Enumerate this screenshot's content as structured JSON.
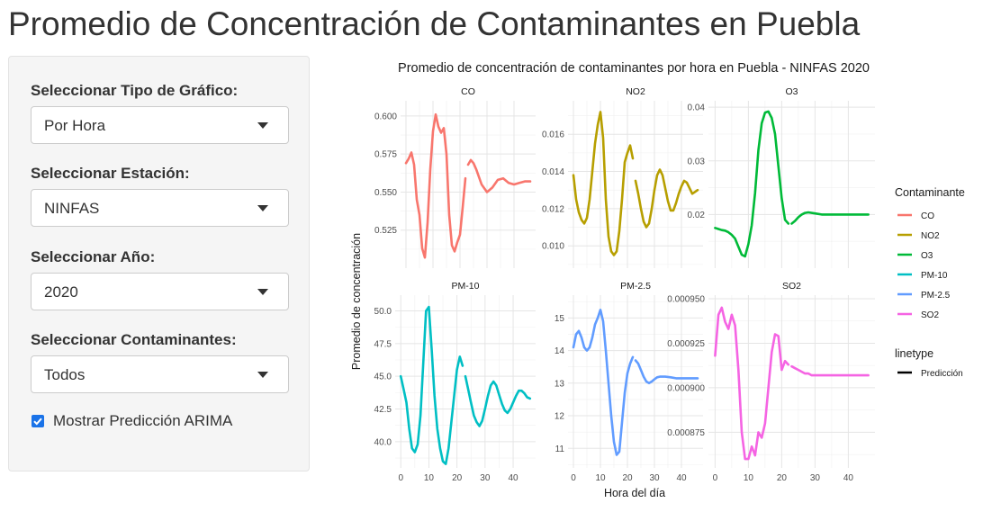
{
  "page": {
    "title": "Promedio de Concentración de Contaminantes en Puebla"
  },
  "sidebar": {
    "chart_type": {
      "label": "Seleccionar Tipo de Gráfico:",
      "value": "Por Hora"
    },
    "station": {
      "label": "Seleccionar Estación:",
      "value": "NINFAS"
    },
    "year": {
      "label": "Seleccionar Año:",
      "value": "2020"
    },
    "pollutants": {
      "label": "Seleccionar Contaminantes:",
      "value": "Todos"
    },
    "arima": {
      "label": "Mostrar Predicción ARIMA",
      "checked": true
    }
  },
  "chart_data": {
    "type": "line",
    "title": "Promedio de concentración de contaminantes por hora en Puebla - NINFAS 2020",
    "xlabel": "Hora del día",
    "ylabel": "Promedio de concentración",
    "grid": true,
    "legend_position": "right",
    "legend": {
      "color_title": "Contaminante",
      "linetype_title": "linetype",
      "linetype_entries": [
        "Predicción"
      ]
    },
    "panels": [
      {
        "name": "CO",
        "color": "#F8766D",
        "xlim": [
          -2,
          48
        ],
        "x_ticks": [
          0,
          10,
          20,
          30,
          40
        ],
        "ylim": [
          0.5,
          0.61
        ],
        "y_ticks": [
          0.525,
          0.55,
          0.575,
          0.6
        ],
        "y_tick_labels": [
          "0.525",
          "0.550",
          "0.575",
          "0.600"
        ],
        "observed": {
          "x": [
            0,
            1,
            2,
            3,
            4,
            5,
            6,
            7,
            8,
            9,
            10,
            11,
            12,
            13,
            14,
            15,
            16,
            17,
            18,
            19,
            20,
            21,
            22
          ],
          "y": [
            0.569,
            0.572,
            0.576,
            0.568,
            0.545,
            0.535,
            0.513,
            0.507,
            0.53,
            0.565,
            0.59,
            0.601,
            0.593,
            0.589,
            0.592,
            0.575,
            0.535,
            0.515,
            0.511,
            0.517,
            0.522,
            0.54,
            0.559
          ]
        },
        "prediction": {
          "x": [
            23,
            24,
            25,
            26,
            28,
            30,
            32,
            34,
            36,
            38,
            40,
            42,
            44,
            46
          ],
          "y": [
            0.568,
            0.571,
            0.569,
            0.565,
            0.555,
            0.55,
            0.553,
            0.558,
            0.559,
            0.556,
            0.555,
            0.556,
            0.557,
            0.557
          ]
        }
      },
      {
        "name": "NO2",
        "color": "#B79F00",
        "xlim": [
          -2,
          48
        ],
        "x_ticks": [
          0,
          10,
          20,
          30,
          40
        ],
        "ylim": [
          0.0088,
          0.0178
        ],
        "y_ticks": [
          0.01,
          0.012,
          0.014,
          0.016
        ],
        "y_tick_labels": [
          "0.010",
          "0.012",
          "0.014",
          "0.016"
        ],
        "observed": {
          "x": [
            0,
            1,
            2,
            3,
            4,
            5,
            6,
            7,
            8,
            9,
            10,
            11,
            12,
            13,
            14,
            15,
            16,
            17,
            18,
            19,
            20,
            21,
            22
          ],
          "y": [
            0.0138,
            0.0125,
            0.0118,
            0.0114,
            0.0112,
            0.0115,
            0.0125,
            0.014,
            0.0155,
            0.0165,
            0.0172,
            0.0158,
            0.0125,
            0.0105,
            0.0097,
            0.0095,
            0.0097,
            0.0108,
            0.0125,
            0.0145,
            0.015,
            0.0154,
            0.0147
          ]
        },
        "prediction": {
          "x": [
            23,
            24,
            25,
            26,
            27,
            28,
            29,
            30,
            31,
            32,
            33,
            34,
            35,
            36,
            37,
            38,
            39,
            40,
            41,
            42,
            43,
            44,
            45,
            46
          ],
          "y": [
            0.0135,
            0.0128,
            0.012,
            0.0113,
            0.011,
            0.0112,
            0.012,
            0.013,
            0.0138,
            0.0141,
            0.0138,
            0.0131,
            0.0124,
            0.0119,
            0.0119,
            0.0123,
            0.0128,
            0.0132,
            0.0135,
            0.0134,
            0.0131,
            0.0128,
            0.0129,
            0.013
          ]
        }
      },
      {
        "name": "O3",
        "color": "#00BA38",
        "xlim": [
          -2,
          48
        ],
        "x_ticks": [
          0,
          10,
          20,
          30,
          40
        ],
        "ylim": [
          0.01,
          0.0412
        ],
        "y_ticks": [
          0.02,
          0.03,
          0.04
        ],
        "y_tick_labels": [
          "0.02",
          "0.03",
          "0.04"
        ],
        "observed": {
          "x": [
            0,
            1,
            2,
            3,
            4,
            5,
            6,
            7,
            8,
            9,
            10,
            11,
            12,
            13,
            14,
            15,
            16,
            17,
            18,
            19,
            20,
            21,
            22
          ],
          "y": [
            0.0175,
            0.0173,
            0.0171,
            0.017,
            0.0167,
            0.0162,
            0.0155,
            0.014,
            0.0125,
            0.0122,
            0.0145,
            0.018,
            0.024,
            0.032,
            0.037,
            0.039,
            0.0392,
            0.038,
            0.035,
            0.029,
            0.023,
            0.019,
            0.0183
          ]
        },
        "prediction": {
          "x": [
            23,
            24,
            25,
            26,
            27,
            28,
            30,
            32,
            34,
            36,
            38,
            40,
            42,
            44,
            46
          ],
          "y": [
            0.0183,
            0.0188,
            0.0195,
            0.02,
            0.0203,
            0.0204,
            0.0202,
            0.02,
            0.02,
            0.02,
            0.02,
            0.02,
            0.02,
            0.02,
            0.02
          ]
        }
      },
      {
        "name": "PM-10",
        "color": "#00BFC4",
        "xlim": [
          -2,
          48
        ],
        "x_ticks": [
          0,
          10,
          20,
          30,
          40
        ],
        "ylim": [
          38,
          51.2
        ],
        "y_ticks": [
          40,
          42.5,
          45,
          47.5,
          50
        ],
        "y_tick_labels": [
          "40.0",
          "42.5",
          "45.0",
          "47.5",
          "50.0"
        ],
        "observed": {
          "x": [
            0,
            1,
            2,
            3,
            4,
            5,
            6,
            7,
            8,
            9,
            10,
            11,
            12,
            13,
            14,
            15,
            16,
            17,
            18,
            19,
            20,
            21,
            22
          ],
          "y": [
            45,
            44,
            43,
            41,
            39.5,
            39.2,
            39.8,
            42,
            46,
            50,
            50.3,
            47,
            43.5,
            41,
            39.5,
            38.5,
            38.3,
            39.5,
            41.5,
            43.5,
            45.5,
            46.5,
            45.8
          ]
        },
        "prediction": {
          "x": [
            23,
            24,
            25,
            26,
            27,
            28,
            29,
            30,
            31,
            32,
            33,
            34,
            35,
            36,
            37,
            38,
            39,
            40,
            41,
            42,
            43,
            44,
            45,
            46
          ],
          "y": [
            45,
            44,
            43,
            42,
            41.5,
            41.2,
            41.6,
            42.5,
            43.5,
            44.3,
            44.6,
            44.3,
            43.6,
            42.9,
            42.4,
            42.2,
            42.5,
            43,
            43.5,
            43.9,
            43.9,
            43.7,
            43.4,
            43.3
          ]
        }
      },
      {
        "name": "PM-2.5",
        "color": "#619CFF",
        "xlim": [
          -2,
          48
        ],
        "x_ticks": [
          0,
          10,
          20,
          30,
          40
        ],
        "ylim": [
          10.4,
          15.7
        ],
        "y_ticks": [
          11,
          12,
          13,
          14,
          15
        ],
        "y_tick_labels": [
          "11",
          "12",
          "13",
          "14",
          "15"
        ],
        "observed": {
          "x": [
            0,
            1,
            2,
            3,
            4,
            5,
            6,
            7,
            8,
            9,
            10,
            11,
            12,
            13,
            14,
            15,
            16,
            17,
            18,
            19,
            20,
            21,
            22
          ],
          "y": [
            14.1,
            14.5,
            14.6,
            14.4,
            14.1,
            14,
            14.1,
            14.4,
            14.8,
            15,
            15.25,
            14.9,
            14,
            13,
            12,
            11.2,
            10.8,
            10.9,
            11.8,
            12.7,
            13.3,
            13.6,
            13.8
          ]
        },
        "prediction": {
          "x": [
            23,
            24,
            25,
            26,
            27,
            28,
            29,
            30,
            31,
            32,
            34,
            36,
            38,
            40,
            42,
            44,
            46
          ],
          "y": [
            13.7,
            13.6,
            13.4,
            13.2,
            13.05,
            13,
            13.05,
            13.12,
            13.18,
            13.2,
            13.2,
            13.18,
            13.15,
            13.15,
            13.15,
            13.15,
            13.15
          ]
        }
      },
      {
        "name": "SO2",
        "color": "#F564E3",
        "xlim": [
          -2,
          48
        ],
        "x_ticks": [
          0,
          10,
          20,
          30,
          40
        ],
        "ylim": [
          0.000855,
          0.000952
        ],
        "y_ticks": [
          0.000875,
          0.0009,
          0.000925,
          0.00095
        ],
        "y_tick_labels": [
          "0.000875",
          "0.000900",
          "0.000925",
          "0.000950"
        ],
        "observed": {
          "x": [
            0,
            1,
            2,
            3,
            4,
            5,
            6,
            7,
            8,
            9,
            10,
            11,
            12,
            13,
            14,
            15,
            16,
            17,
            18,
            19,
            20,
            21,
            22
          ],
          "y": [
            0.000918,
            0.000941,
            0.000945,
            0.000937,
            0.000933,
            0.000941,
            0.000935,
            0.00091,
            0.000875,
            0.00086,
            0.00086,
            0.000867,
            0.000862,
            0.000875,
            0.000872,
            0.00088,
            0.0009,
            0.00092,
            0.00093,
            0.000929,
            0.00091,
            0.000915,
            0.000913
          ]
        },
        "prediction": {
          "x": [
            23,
            24,
            25,
            26,
            27,
            28,
            29,
            30,
            32,
            34,
            36,
            38,
            40,
            42,
            44,
            46
          ],
          "y": [
            0.000912,
            0.000911,
            0.00091,
            0.000909,
            0.000908,
            0.000908,
            0.000907,
            0.000907,
            0.000907,
            0.000907,
            0.000907,
            0.000907,
            0.000907,
            0.000907,
            0.000907,
            0.000907
          ]
        }
      }
    ]
  }
}
